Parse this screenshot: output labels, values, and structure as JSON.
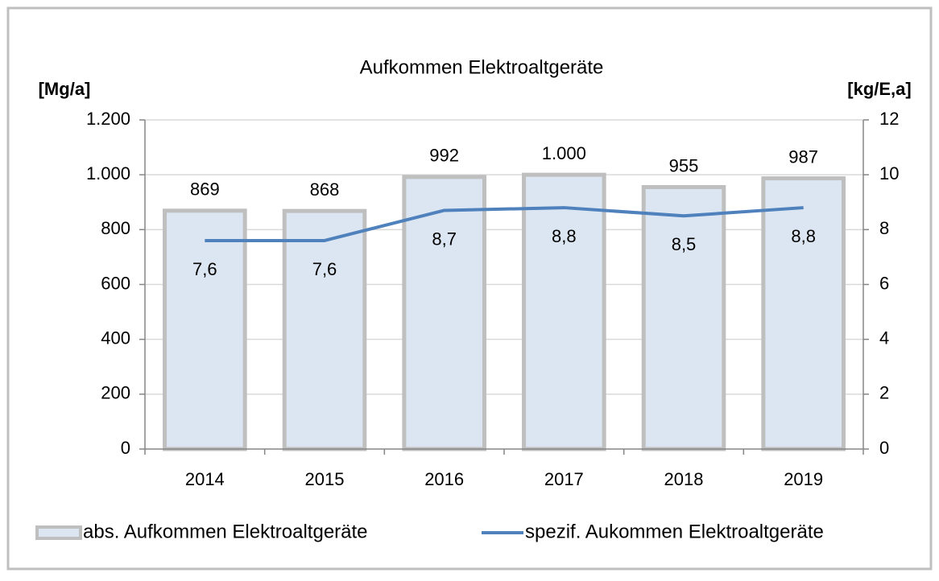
{
  "chart_data": {
    "type": "bar",
    "title": "Aufkommen Elektroaltgeräte",
    "ylabel": "[Mg/a]",
    "y2label": "[kg/E,a]",
    "categories": [
      "2014",
      "2015",
      "2016",
      "2017",
      "2018",
      "2019"
    ],
    "series": [
      {
        "name": "abs. Aufkommen Elektroaltgeräte",
        "type": "bar",
        "color": "#dce6f2",
        "edgecolor": "#bfbfbf",
        "values": [
          869,
          868,
          992,
          1000,
          955,
          987
        ],
        "value_labels": [
          "869",
          "868",
          "992",
          "1.000",
          "955",
          "987"
        ]
      },
      {
        "name": "spezif. Aukommen Elektroaltgeräte",
        "type": "line",
        "axis": "y2",
        "color": "#4f81bd",
        "values": [
          7.6,
          7.6,
          8.7,
          8.8,
          8.5,
          8.8
        ],
        "value_labels": [
          "7,6",
          "7,6",
          "8,7",
          "8,8",
          "8,5",
          "8,8"
        ]
      }
    ],
    "ylim": [
      0,
      1200
    ],
    "yticks": [
      0,
      200,
      400,
      600,
      800,
      {
        "value": 1000,
        "label": "1.000"
      },
      {
        "value": 1200,
        "label": "1.200"
      }
    ],
    "y2lim": [
      0,
      12
    ],
    "y2ticks": [
      0,
      2,
      4,
      6,
      8,
      10,
      12
    ],
    "grid": true,
    "legend": "bottom"
  }
}
